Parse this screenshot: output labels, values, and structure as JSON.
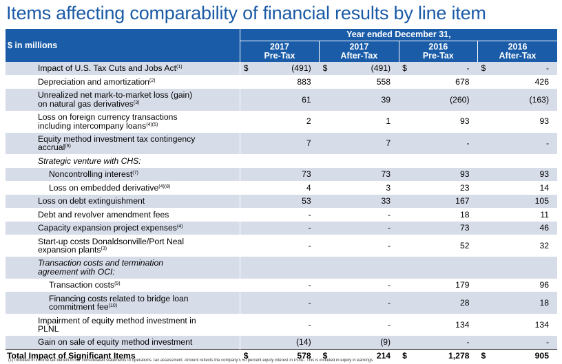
{
  "title": "Items affecting comparability of financial results by line item",
  "header": {
    "unit_label": "$ in millions",
    "period": "Year ended December 31,",
    "columns": [
      {
        "year": "2017",
        "basis": "Pre-Tax"
      },
      {
        "year": "2017",
        "basis": "After-Tax"
      },
      {
        "year": "2016",
        "basis": "Pre-Tax"
      },
      {
        "year": "2016",
        "basis": "After-Tax"
      }
    ]
  },
  "rows": [
    {
      "label": "Impact of U.S. Tax Cuts and Jobs Act",
      "note": "(1)",
      "values": [
        "(491)",
        "(491)",
        "-",
        "-"
      ],
      "dollar": true,
      "indent": 0,
      "italic": false,
      "shade": true
    },
    {
      "label": "Depreciation and amortization",
      "note": "(2)",
      "values": [
        "883",
        "558",
        "678",
        "426"
      ],
      "dollar": false,
      "indent": 0,
      "italic": false,
      "shade": false
    },
    {
      "label": "Unrealized net mark-to-market loss (gain)",
      "label2": "on natural gas derivatives",
      "note": "(3)",
      "values": [
        "61",
        "39",
        "(260)",
        "(163)"
      ],
      "dollar": false,
      "indent": 0,
      "italic": false,
      "shade": true
    },
    {
      "label": "Loss on foreign currency transactions",
      "label2": "including intercompany loans",
      "note": "(4)(5)",
      "values": [
        "2",
        "1",
        "93",
        "93"
      ],
      "dollar": false,
      "indent": 0,
      "italic": false,
      "shade": false
    },
    {
      "label": "Equity method investment tax contingency",
      "label2": "accrual",
      "note": "(6)",
      "values": [
        "7",
        "7",
        "-",
        "-"
      ],
      "dollar": false,
      "indent": 0,
      "italic": false,
      "shade": true
    },
    {
      "label": "Strategic venture with CHS:",
      "note": "",
      "values": [
        "",
        "",
        "",
        ""
      ],
      "dollar": false,
      "indent": 0,
      "italic": true,
      "shade": false
    },
    {
      "label": "Noncontrolling interest",
      "note": "(7)",
      "values": [
        "73",
        "73",
        "93",
        "93"
      ],
      "dollar": false,
      "indent": 1,
      "italic": false,
      "shade": true
    },
    {
      "label": "Loss on embedded derivative",
      "note": "(4)(8)",
      "values": [
        "4",
        "3",
        "23",
        "14"
      ],
      "dollar": false,
      "indent": 1,
      "italic": false,
      "shade": false
    },
    {
      "label": "Loss on debt extinguishment",
      "note": "",
      "values": [
        "53",
        "33",
        "167",
        "105"
      ],
      "dollar": false,
      "indent": 0,
      "italic": false,
      "shade": true
    },
    {
      "label": "Debt and revolver amendment fees",
      "note": "",
      "values": [
        "-",
        "-",
        "18",
        "11"
      ],
      "dollar": false,
      "indent": 0,
      "italic": false,
      "shade": false
    },
    {
      "label": "Capacity expansion project expenses",
      "note": "(4)",
      "values": [
        "-",
        "-",
        "73",
        "46"
      ],
      "dollar": false,
      "indent": 0,
      "italic": false,
      "shade": true
    },
    {
      "label": "Start-up costs Donaldsonville/Port Neal",
      "label2": "expansion plants",
      "note": "(3)",
      "values": [
        "-",
        "-",
        "52",
        "32"
      ],
      "dollar": false,
      "indent": 0,
      "italic": false,
      "shade": false
    },
    {
      "label": "Transaction costs and termination",
      "label2": "agreement with OCI:",
      "note": "",
      "values": [
        "",
        "",
        "",
        ""
      ],
      "dollar": false,
      "indent": 0,
      "italic": true,
      "shade": true
    },
    {
      "label": "Transaction costs",
      "note": "(9)",
      "values": [
        "-",
        "-",
        "179",
        "96"
      ],
      "dollar": false,
      "indent": 1,
      "italic": false,
      "shade": false
    },
    {
      "label": "Financing costs related to bridge loan",
      "label2": "commitment fee",
      "note": "(10)",
      "values": [
        "-",
        "-",
        "28",
        "18"
      ],
      "dollar": false,
      "indent": 1,
      "italic": false,
      "shade": true
    },
    {
      "label": "Impairment of equity method investment in",
      "label2": "PLNL",
      "note": "",
      "values": [
        "-",
        "-",
        "134",
        "134"
      ],
      "dollar": false,
      "indent": 0,
      "italic": false,
      "shade": false
    },
    {
      "label": "Gain on sale of equity method investment",
      "note": "",
      "values": [
        "(14)",
        "(9)",
        "-",
        "-"
      ],
      "dollar": false,
      "indent": 0,
      "italic": false,
      "shade": true
    }
  ],
  "total": {
    "label": "Total Impact of Significant Items",
    "values": [
      "578",
      "214",
      "1,278",
      "905"
    ],
    "dollar": "$"
  },
  "footnote": "(1)   Included in income tax benefit in our consolidated statements of operations.                                                                                    tax assessment. Amount reflects the company's 50 percent equity interest in PLNL. This is included in equity in earnings"
}
